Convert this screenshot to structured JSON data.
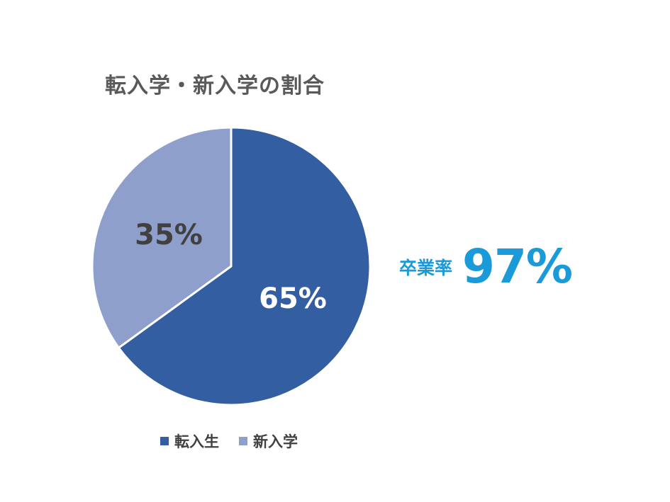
{
  "chart_data": {
    "type": "pie",
    "title": "転入学・新入学の割合",
    "categories": [
      "転入生",
      "新入学"
    ],
    "values": [
      65,
      35
    ],
    "data_labels": [
      "65%",
      "35%"
    ],
    "colors": [
      "#335EA2",
      "#8E9FCC"
    ],
    "label_colors": [
      "#ffffff",
      "#404040"
    ],
    "legend_position": "bottom"
  },
  "callout": {
    "label": "卒業率",
    "value": "97%",
    "color": "#1A9AD9"
  }
}
